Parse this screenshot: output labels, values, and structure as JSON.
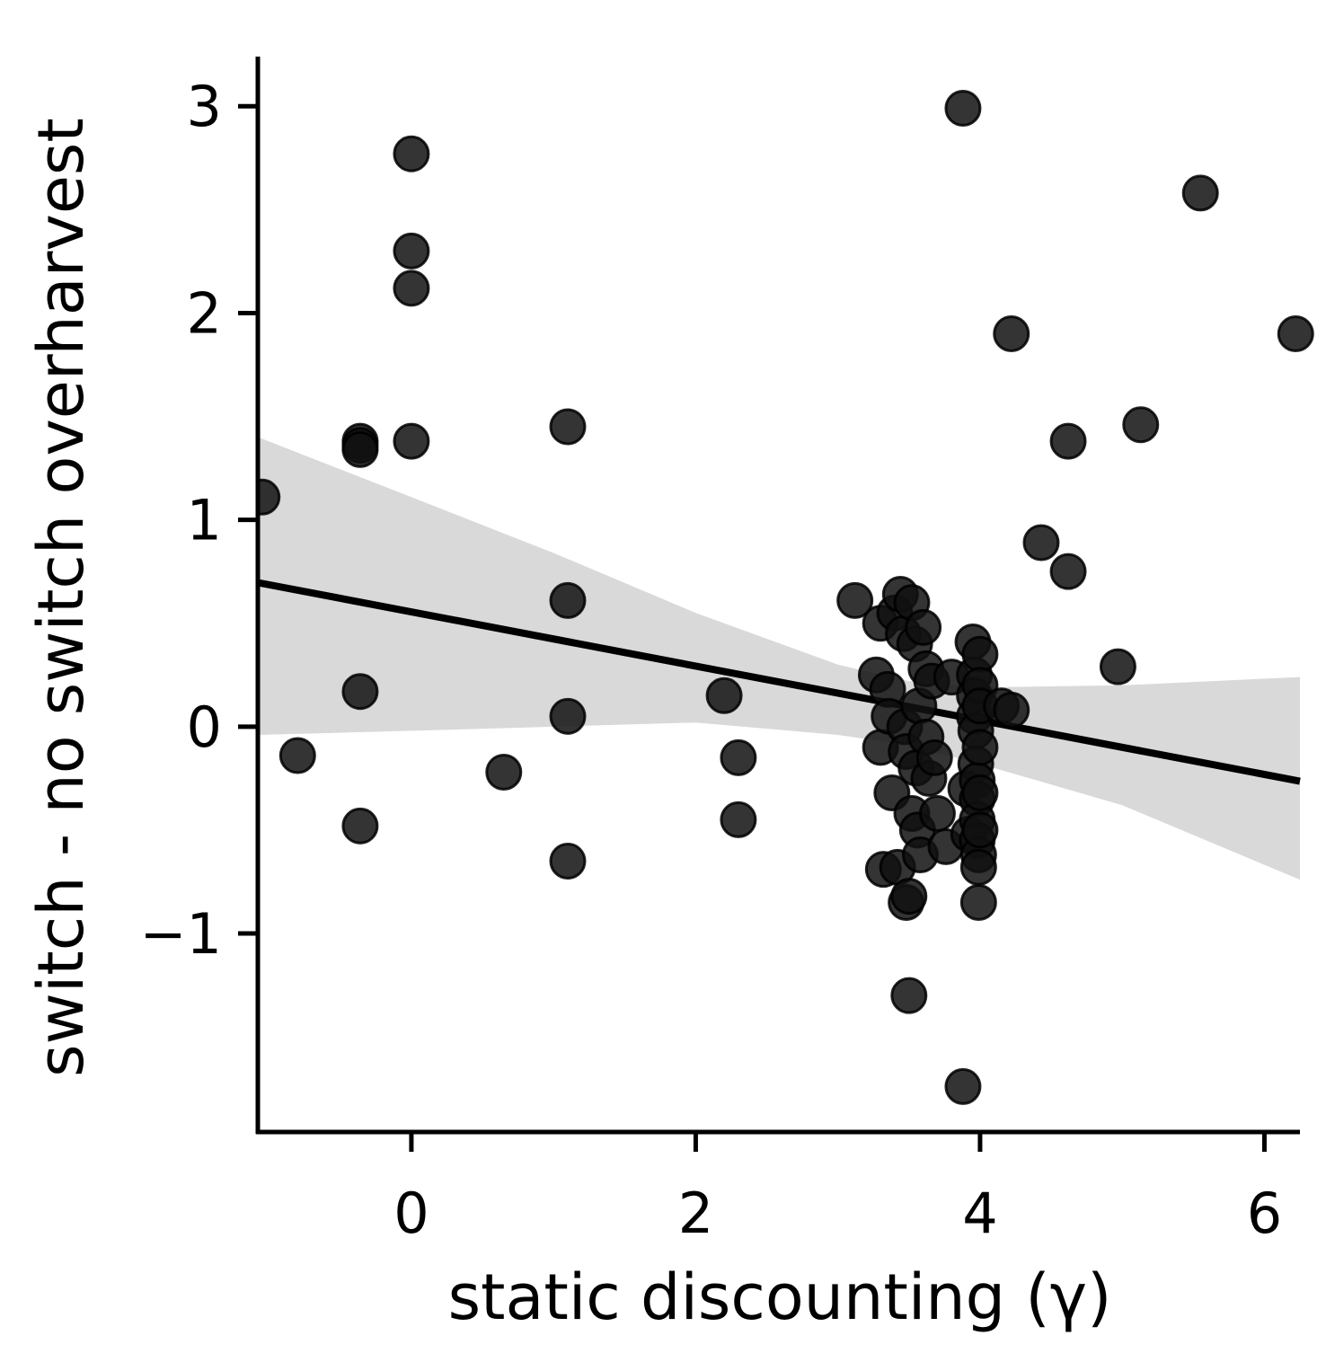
{
  "chart_data": {
    "type": "scatter",
    "title": "",
    "xlabel": "static discounting (γ)",
    "ylabel": "switch - no switch overharvest",
    "xlim": [
      -1.08,
      6.25
    ],
    "ylim": [
      -1.96,
      3.24
    ],
    "x_ticks": [
      0,
      2,
      4,
      6
    ],
    "y_ticks": [
      -1,
      0,
      1,
      2,
      3
    ],
    "x_tick_labels": [
      "0",
      "2",
      "4",
      "6"
    ],
    "y_tick_labels": [
      "−1",
      "0",
      "1",
      "2",
      "3"
    ],
    "grid": false,
    "legend": "none",
    "colors": {
      "points": "#111111",
      "line": "#000000",
      "band": "#d9d9d9"
    },
    "series": [
      {
        "points": [
          [
            -1.05,
            1.11
          ],
          [
            -0.8,
            -0.14
          ],
          [
            -0.36,
            1.38
          ],
          [
            -0.36,
            1.36
          ],
          [
            -0.36,
            1.34
          ],
          [
            -0.36,
            0.17
          ],
          [
            -0.36,
            -0.48
          ],
          [
            0.0,
            2.77
          ],
          [
            0.0,
            2.3
          ],
          [
            0.0,
            2.12
          ],
          [
            0.0,
            1.38
          ],
          [
            0.65,
            -0.22
          ],
          [
            1.1,
            1.45
          ],
          [
            1.1,
            0.61
          ],
          [
            1.1,
            0.05
          ],
          [
            1.1,
            -0.65
          ],
          [
            2.2,
            0.15
          ],
          [
            2.3,
            -0.15
          ],
          [
            2.3,
            -0.45
          ],
          [
            3.12,
            0.61
          ],
          [
            3.27,
            0.25
          ],
          [
            3.3,
            0.5
          ],
          [
            3.3,
            -0.1
          ],
          [
            3.32,
            -0.69
          ],
          [
            3.35,
            0.18
          ],
          [
            3.36,
            0.05
          ],
          [
            3.38,
            -0.32
          ],
          [
            3.4,
            0.55
          ],
          [
            3.42,
            -0.68
          ],
          [
            3.44,
            0.64
          ],
          [
            3.46,
            0.45
          ],
          [
            3.47,
            0.0
          ],
          [
            3.48,
            -0.85
          ],
          [
            3.48,
            -0.12
          ],
          [
            3.5,
            -0.82
          ],
          [
            3.5,
            -1.3
          ],
          [
            3.52,
            0.6
          ],
          [
            3.52,
            -0.42
          ],
          [
            3.54,
            0.4
          ],
          [
            3.55,
            -0.2
          ],
          [
            3.56,
            -0.5
          ],
          [
            3.57,
            0.1
          ],
          [
            3.58,
            -0.62
          ],
          [
            3.6,
            0.48
          ],
          [
            3.62,
            0.28
          ],
          [
            3.62,
            -0.05
          ],
          [
            3.64,
            -0.25
          ],
          [
            3.66,
            0.22
          ],
          [
            3.68,
            -0.15
          ],
          [
            3.7,
            -0.42
          ],
          [
            3.76,
            -0.58
          ],
          [
            3.8,
            0.24
          ],
          [
            3.88,
            2.99
          ],
          [
            3.88,
            -1.74
          ],
          [
            3.9,
            -0.3
          ],
          [
            3.92,
            -0.52
          ],
          [
            3.95,
            0.41
          ],
          [
            3.96,
            0.25
          ],
          [
            3.96,
            0.15
          ],
          [
            3.96,
            0.05
          ],
          [
            3.97,
            -0.02
          ],
          [
            3.97,
            -0.18
          ],
          [
            3.98,
            -0.26
          ],
          [
            3.98,
            -0.35
          ],
          [
            3.98,
            -0.45
          ],
          [
            3.98,
            -0.55
          ],
          [
            3.99,
            -0.62
          ],
          [
            3.99,
            -0.68
          ],
          [
            3.99,
            -0.85
          ],
          [
            4.0,
            0.35
          ],
          [
            4.0,
            0.2
          ],
          [
            4.0,
            0.1
          ],
          [
            4.0,
            -0.1
          ],
          [
            4.0,
            -0.32
          ],
          [
            4.0,
            -0.5
          ],
          [
            4.15,
            0.1
          ],
          [
            4.22,
            0.08
          ],
          [
            4.22,
            1.9
          ],
          [
            4.43,
            0.89
          ],
          [
            4.62,
            1.38
          ],
          [
            4.62,
            0.75
          ],
          [
            4.97,
            0.29
          ],
          [
            5.13,
            1.46
          ],
          [
            5.55,
            2.58
          ],
          [
            6.22,
            1.9
          ]
        ]
      }
    ],
    "regression": {
      "slope": -0.131,
      "intercept": 0.555
    },
    "ci_band": [
      {
        "x": -1.08,
        "lower": -0.04,
        "upper": 1.4
      },
      {
        "x": 0.0,
        "lower": -0.02,
        "upper": 1.11
      },
      {
        "x": 1.0,
        "lower": -0.0,
        "upper": 0.84
      },
      {
        "x": 2.0,
        "lower": 0.02,
        "upper": 0.55
      },
      {
        "x": 3.0,
        "lower": -0.04,
        "upper": 0.3
      },
      {
        "x": 3.5,
        "lower": -0.09,
        "upper": 0.22
      },
      {
        "x": 4.0,
        "lower": -0.18,
        "upper": 0.19
      },
      {
        "x": 5.0,
        "lower": -0.38,
        "upper": 0.2
      },
      {
        "x": 6.25,
        "lower": -0.74,
        "upper": 0.24
      }
    ]
  }
}
